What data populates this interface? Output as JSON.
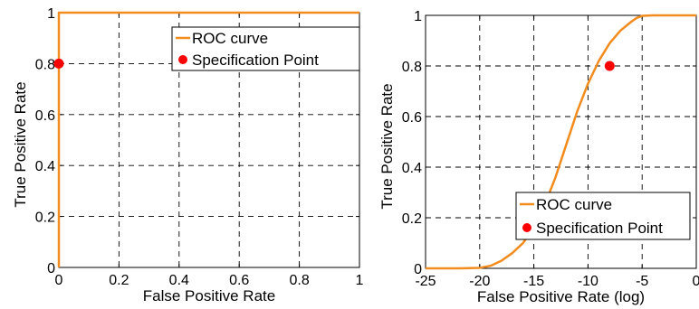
{
  "chart_data": [
    {
      "type": "line",
      "xlabel": "False Positive Rate",
      "ylabel": "True Positive Rate",
      "xlim": [
        0,
        1
      ],
      "ylim": [
        0,
        1
      ],
      "xticks": [
        0,
        0.2,
        0.4,
        0.6,
        0.8,
        1
      ],
      "xtick_labels": [
        "0",
        "0.2",
        "0.4",
        "0.6",
        "0.8",
        "1"
      ],
      "yticks": [
        0,
        0.2,
        0.4,
        0.6,
        0.8,
        1
      ],
      "ytick_labels": [
        "0",
        "0.2",
        "0.4",
        "0.6",
        "0.8",
        "1"
      ],
      "grid": true,
      "legend_position": "top-right",
      "series": [
        {
          "name": "ROC curve",
          "kind": "line",
          "color": "#f28c1e",
          "x": [
            0,
            0,
            1
          ],
          "y": [
            0,
            1,
            1
          ]
        },
        {
          "name": "Specification Point",
          "kind": "point",
          "color": "#ff0000",
          "x": [
            0
          ],
          "y": [
            0.8
          ]
        }
      ]
    },
    {
      "type": "line",
      "xlabel": "False Positive Rate (log)",
      "ylabel": "True Positive Rate",
      "xlim": [
        -25,
        0
      ],
      "ylim": [
        0,
        1
      ],
      "xticks": [
        -25,
        -20,
        -15,
        -10,
        -5,
        0
      ],
      "xtick_labels": [
        "-25",
        "-20",
        "-15",
        "-10",
        "-5",
        "0"
      ],
      "yticks": [
        0,
        0.2,
        0.4,
        0.6,
        0.8,
        1
      ],
      "ytick_labels": [
        "0",
        "0.2",
        "0.4",
        "0.6",
        "0.8",
        "1"
      ],
      "grid": true,
      "legend_position": "bottom-right",
      "series": [
        {
          "name": "ROC curve",
          "kind": "line",
          "color": "#f28c1e",
          "x": [
            -25,
            -22,
            -20,
            -19,
            -18,
            -17,
            -16,
            -15,
            -14,
            -13,
            -12,
            -11,
            -10,
            -9,
            -8,
            -7,
            -6,
            -5.5,
            -5,
            -4,
            -2,
            0
          ],
          "y": [
            0,
            0,
            0.002,
            0.01,
            0.03,
            0.06,
            0.1,
            0.16,
            0.25,
            0.36,
            0.49,
            0.62,
            0.73,
            0.82,
            0.89,
            0.94,
            0.975,
            0.99,
            0.998,
            1,
            1,
            1
          ]
        },
        {
          "name": "Specification Point",
          "kind": "point",
          "color": "#ff0000",
          "x": [
            -8
          ],
          "y": [
            0.8
          ]
        }
      ]
    }
  ]
}
